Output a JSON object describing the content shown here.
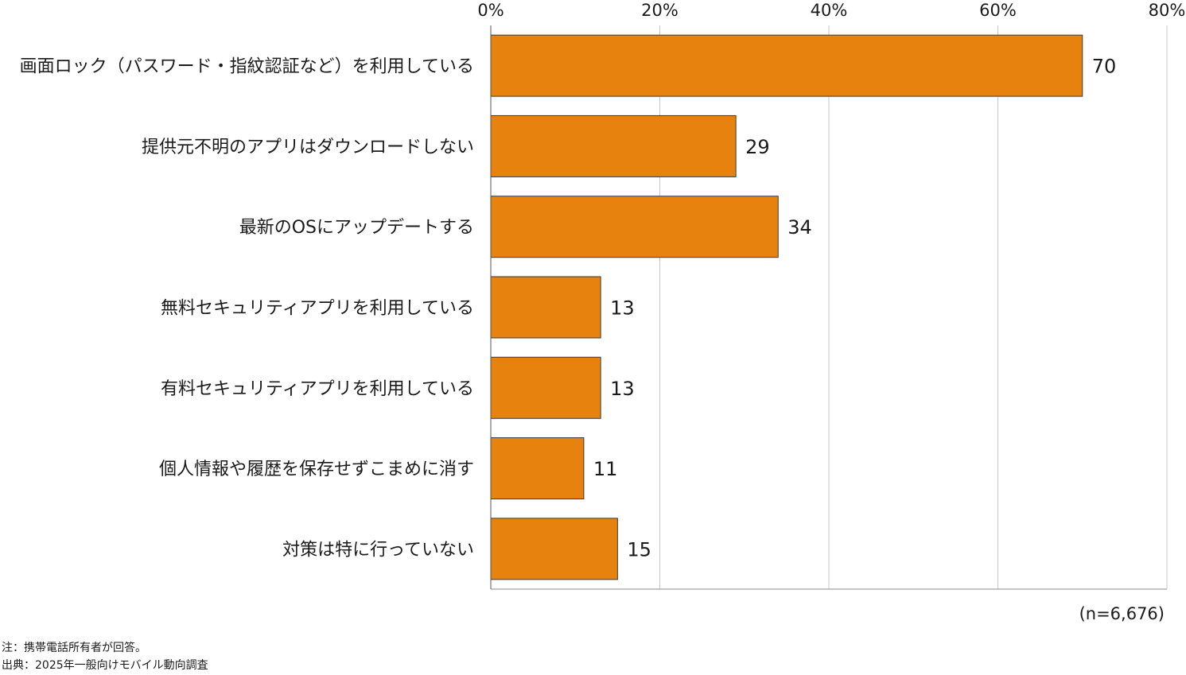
{
  "chart_data": {
    "type": "bar",
    "orientation": "horizontal",
    "categories": [
      "画面ロック（パスワード・指紋認証など）を利用している",
      "提供元不明のアプリはダウンロードしない",
      "最新のOSにアップデートする",
      "無料セキュリティアプリを利用している",
      "有料セキュリティアプリを利用している",
      "個人情報や履歴を保存せずこまめに消す",
      "対策は特に行っていない"
    ],
    "values": [
      70,
      29,
      34,
      13,
      13,
      11,
      15
    ],
    "xlim": [
      0,
      80
    ],
    "x_ticks": [
      0,
      20,
      40,
      60,
      80
    ],
    "x_tick_labels": [
      "0%",
      "20%",
      "40%",
      "60%",
      "80%"
    ],
    "x_axis_position": "top",
    "grid": true,
    "bar_color": "#E8820F",
    "bar_edge_color": "#3a3a3a",
    "grid_color": "#c8c8c8",
    "sample_note": "(n=6,676)"
  },
  "notes": {
    "note": "注：携帯電話所有者が回答。",
    "source": "出典：2025年一般向けモバイル動向調査"
  }
}
